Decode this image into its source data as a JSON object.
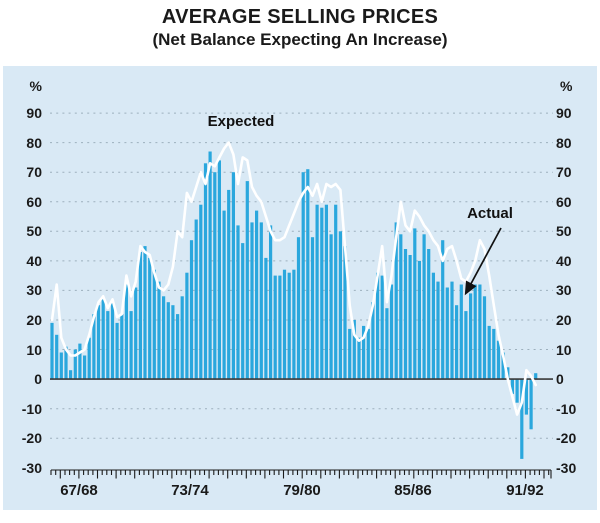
{
  "chart_data": {
    "type": "combo-bar-line",
    "title": "AVERAGE SELLING PRICES",
    "subtitle": "(Net Balance Expecting An Increase)",
    "unit": "%",
    "ylim": [
      -30,
      90
    ],
    "y_ticks": [
      90,
      80,
      70,
      60,
      50,
      40,
      30,
      20,
      10,
      0,
      -10,
      -20,
      -30
    ],
    "x_tick_labels": [
      "67/68",
      "73/74",
      "79/80",
      "85/86",
      "91/92"
    ],
    "grid": "dashed-horizontal",
    "legend_position": "inline-annotations",
    "series_labels": {
      "expected": "Expected",
      "actual": "Actual"
    },
    "series": [
      {
        "name": "Actual",
        "type": "bar",
        "color": "#2aa7dd",
        "values": [
          19,
          15,
          9,
          11,
          3,
          10,
          12,
          8,
          14,
          22,
          25,
          27,
          23,
          26,
          19,
          22,
          32,
          23,
          31,
          43,
          45,
          41,
          37,
          33,
          28,
          26,
          25,
          22,
          28,
          36,
          47,
          54,
          59,
          73,
          77,
          70,
          74,
          57,
          64,
          70,
          52,
          46,
          67,
          53,
          57,
          53,
          41,
          52,
          35,
          35,
          37,
          36,
          37,
          48,
          70,
          71,
          48,
          59,
          58,
          59,
          49,
          59,
          50,
          45,
          17,
          20,
          14,
          18,
          17,
          26,
          36,
          35,
          24,
          32,
          53,
          49,
          44,
          42,
          51,
          40,
          49,
          44,
          36,
          33,
          47,
          31,
          33,
          25,
          32,
          23,
          29,
          32,
          32,
          28,
          18,
          17,
          13,
          9,
          4,
          -5,
          -8,
          -27,
          -12,
          -17,
          2
        ]
      },
      {
        "name": "Expected",
        "type": "line",
        "color": "#ffffff",
        "values": [
          20,
          32,
          14,
          10,
          8,
          8,
          9,
          10,
          15,
          21,
          26,
          28,
          24,
          27,
          21,
          22,
          35,
          28,
          33,
          45,
          43,
          42,
          36,
          31,
          30,
          32,
          38,
          50,
          48,
          63,
          60,
          65,
          70,
          66,
          73,
          72,
          75,
          78,
          80,
          76,
          66,
          75,
          74,
          65,
          62,
          60,
          55,
          50,
          47,
          47,
          48,
          52,
          56,
          60,
          63,
          65,
          62,
          66,
          60,
          66,
          65,
          66,
          64,
          45,
          25,
          15,
          13,
          14,
          18,
          25,
          35,
          45,
          26,
          35,
          48,
          60,
          52,
          50,
          57,
          55,
          52,
          50,
          47,
          45,
          40,
          44,
          45,
          40,
          34,
          33,
          36,
          40,
          47,
          44,
          35,
          25,
          15,
          8,
          0,
          -6,
          -12,
          -8,
          3,
          1,
          -2
        ]
      }
    ]
  }
}
